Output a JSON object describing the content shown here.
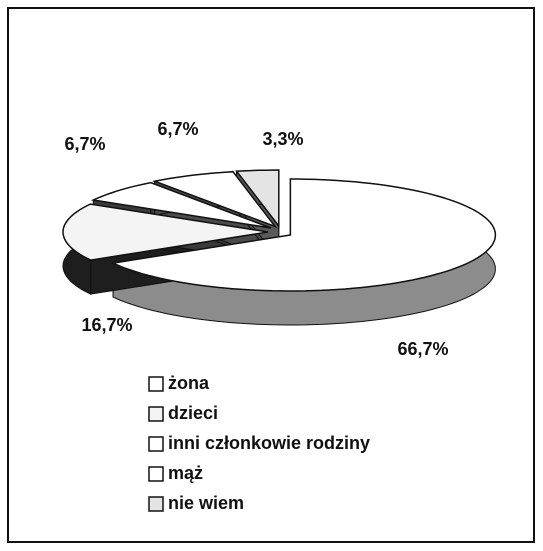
{
  "chart_data": {
    "type": "pie3d",
    "categories": [
      "żona",
      "dzieci",
      "inni członkowie rodziny",
      "mąż",
      "nie wiem"
    ],
    "values": [
      66.7,
      16.7,
      6.7,
      6.7,
      3.3
    ],
    "value_labels": [
      "66,7%",
      "16,7%",
      "6,7%",
      "6,7%",
      "3,3%"
    ],
    "colors": [
      "#ffffff",
      "#f4f4f4",
      "#ffffff",
      "#ffffff",
      "#e4e4e4"
    ],
    "side_colors": [
      "#8c8c8c",
      "#1e1e1e",
      "#3a3a3a",
      "#4a4a4a",
      "#5a5a5a"
    ],
    "legend": "bottom"
  }
}
